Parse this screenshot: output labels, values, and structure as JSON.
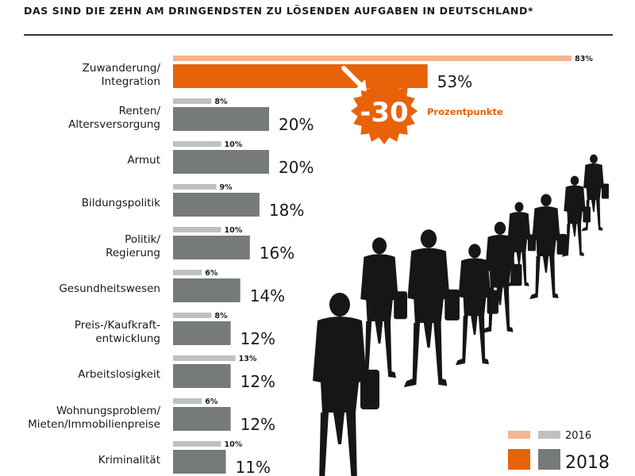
{
  "header": "DAS SIND DIE ZEHN AM DRINGENDSTEN ZU LÖSENDEN AUFGABEN IN DEUTSCHLAND*",
  "colors": {
    "highlight_2018": "#e8620a",
    "highlight_2016": "#f4b593",
    "bar_2018": "#767b78",
    "bar_2016": "#bfc1bf",
    "silhouette": "#161616"
  },
  "chart_data": {
    "type": "bar",
    "orientation": "horizontal",
    "categories": [
      [
        "Zuwanderung/",
        "Integration"
      ],
      [
        "Renten/",
        "Altersversorgung"
      ],
      [
        "Armut"
      ],
      [
        "Bildungspolitik"
      ],
      [
        "Politik/",
        "Regierung"
      ],
      [
        "Gesundheitswesen"
      ],
      [
        "Preis-/Kaufkraft-",
        "entwicklung"
      ],
      [
        "Arbeitslosigkeit"
      ],
      [
        "Wohnungsproblem/",
        "Mieten/Immobilienpreise"
      ],
      [
        "Kriminalität"
      ]
    ],
    "series": [
      {
        "name": "2018",
        "values": [
          53,
          20,
          20,
          18,
          16,
          14,
          12,
          12,
          12,
          11
        ]
      },
      {
        "name": "2016",
        "values": [
          83,
          8,
          10,
          9,
          10,
          6,
          8,
          13,
          6,
          10
        ]
      }
    ],
    "unit": "%",
    "annotation": {
      "value": "-30",
      "text": "Prozentpunkte"
    },
    "legend": {
      "position": "bottom-right",
      "entries": [
        "2016",
        "2018"
      ]
    }
  }
}
